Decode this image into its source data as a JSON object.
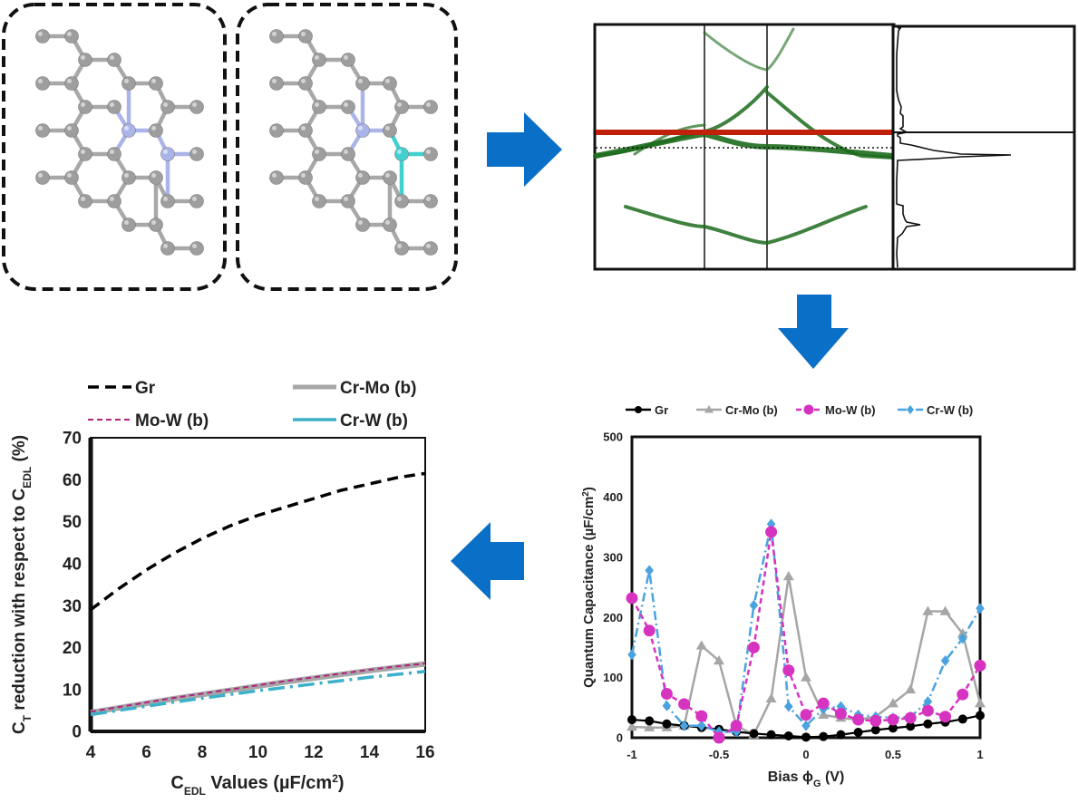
{
  "colors": {
    "arrow": "#0a6fc6",
    "gr": "#000000",
    "crmo": "#a6a6a6",
    "mow": "#d633c1",
    "crw": "#4aa3df",
    "crw_left": "#3cb0c9",
    "mow_left": "#b0237f",
    "band_green": "#1d6b1d",
    "fermi_red": "#c0200a",
    "atom_c": "#9e9e9e",
    "atom_n": "#aab4e8",
    "atom_x": "#40d0d0"
  },
  "structures": [
    {
      "name": "structure-left",
      "dopant": "two-nitrogen"
    },
    {
      "name": "structure-right",
      "dopant": "nitrogen-and-metal"
    }
  ],
  "chart_data": [
    {
      "type": "line",
      "name": "quantum-capacitance",
      "xlabel": "Bias ϕ",
      "xlabel_sub": "G",
      "xlabel_unit": " (V)",
      "ylabel": "Quantum Capacitance (µF/cm",
      "ylabel_sup": "2",
      "ylabel_end": ")",
      "xlim": [
        -1,
        1
      ],
      "ylim": [
        0,
        500
      ],
      "xticks": [
        -1,
        -0.5,
        0,
        0.5,
        1
      ],
      "xtick_labels": [
        "-1",
        "-0.5",
        "0",
        "0.5",
        "1"
      ],
      "yticks": [
        0,
        100,
        200,
        300,
        400,
        500
      ],
      "ytick_labels": [
        "0",
        "100",
        "200",
        "300",
        "400",
        "500"
      ],
      "grid": false,
      "legend_position": "top",
      "x": [
        -1,
        -0.9,
        -0.8,
        -0.7,
        -0.6,
        -0.5,
        -0.4,
        -0.3,
        -0.2,
        -0.1,
        0,
        0.1,
        0.2,
        0.3,
        0.4,
        0.5,
        0.6,
        0.7,
        0.8,
        0.9,
        1
      ],
      "series": [
        {
          "name": "Gr",
          "marker": "circle",
          "values": [
            30,
            28,
            23,
            20,
            17,
            14,
            10,
            7,
            5,
            3,
            1,
            2,
            5,
            9,
            13,
            16,
            19,
            23,
            26,
            31,
            37
          ]
        },
        {
          "name": "Cr-Mo (b)",
          "marker": "triangle",
          "values": [
            18,
            17,
            17,
            20,
            153,
            128,
            20,
            5,
            65,
            268,
            100,
            38,
            33,
            30,
            35,
            57,
            80,
            210,
            210,
            173,
            57
          ]
        },
        {
          "name": "Mo-W (b)",
          "marker": "circle",
          "values": [
            232,
            178,
            73,
            56,
            36,
            0,
            20,
            150,
            342,
            112,
            38,
            57,
            40,
            30,
            28,
            30,
            33,
            45,
            35,
            72,
            120
          ]
        },
        {
          "name": "Cr-W (b)",
          "marker": "diamond",
          "values": [
            138,
            278,
            53,
            20,
            20,
            10,
            10,
            220,
            355,
            52,
            20,
            48,
            52,
            38,
            35,
            33,
            35,
            60,
            128,
            165,
            215
          ]
        }
      ]
    },
    {
      "type": "line",
      "name": "ct-reduction",
      "xlabel": "C",
      "xlabel_sub": "EDL",
      "xlabel_unit": " Values (µF/cm",
      "xlabel_sup": "2",
      "xlabel_end": ")",
      "ylabel": "C",
      "ylabel_sub": "T",
      "ylabel_mid": " reduction with respect to C",
      "ylabel_sub2": "EDL",
      "ylabel_end": " (%)",
      "xlim": [
        4,
        16
      ],
      "ylim": [
        0,
        70
      ],
      "xticks": [
        4,
        6,
        8,
        10,
        12,
        14,
        16
      ],
      "xtick_labels": [
        "4",
        "6",
        "8",
        "10",
        "12",
        "14",
        "16"
      ],
      "yticks": [
        0,
        10,
        20,
        30,
        40,
        50,
        60,
        70
      ],
      "ytick_labels": [
        "0",
        "10",
        "20",
        "30",
        "40",
        "50",
        "60",
        "70"
      ],
      "grid": false,
      "legend_position": "top",
      "x": [
        4,
        5,
        6,
        7,
        8,
        9,
        10,
        11,
        12,
        13,
        14,
        15,
        16
      ],
      "series": [
        {
          "name": "Gr",
          "values": [
            29,
            34,
            38.5,
            42.5,
            46,
            49,
            51.5,
            53.5,
            55.5,
            57.5,
            59,
            60.5,
            61.5
          ]
        },
        {
          "name": "Cr-Mo (b)",
          "values": [
            4.5,
            5.6,
            6.7,
            7.8,
            8.8,
            9.8,
            10.8,
            11.8,
            12.7,
            13.6,
            14.5,
            15.3,
            16.1
          ]
        },
        {
          "name": "Mo-W (b)",
          "values": [
            4.7,
            5.8,
            6.9,
            8.0,
            9.0,
            10.0,
            11.0,
            12.0,
            12.9,
            13.8,
            14.7,
            15.5,
            16.2
          ]
        },
        {
          "name": "Cr-W (b)",
          "values": [
            4.0,
            5.0,
            6.0,
            7.0,
            7.9,
            8.8,
            9.7,
            10.5,
            11.3,
            12.1,
            12.9,
            13.6,
            14.3
          ]
        }
      ]
    }
  ]
}
